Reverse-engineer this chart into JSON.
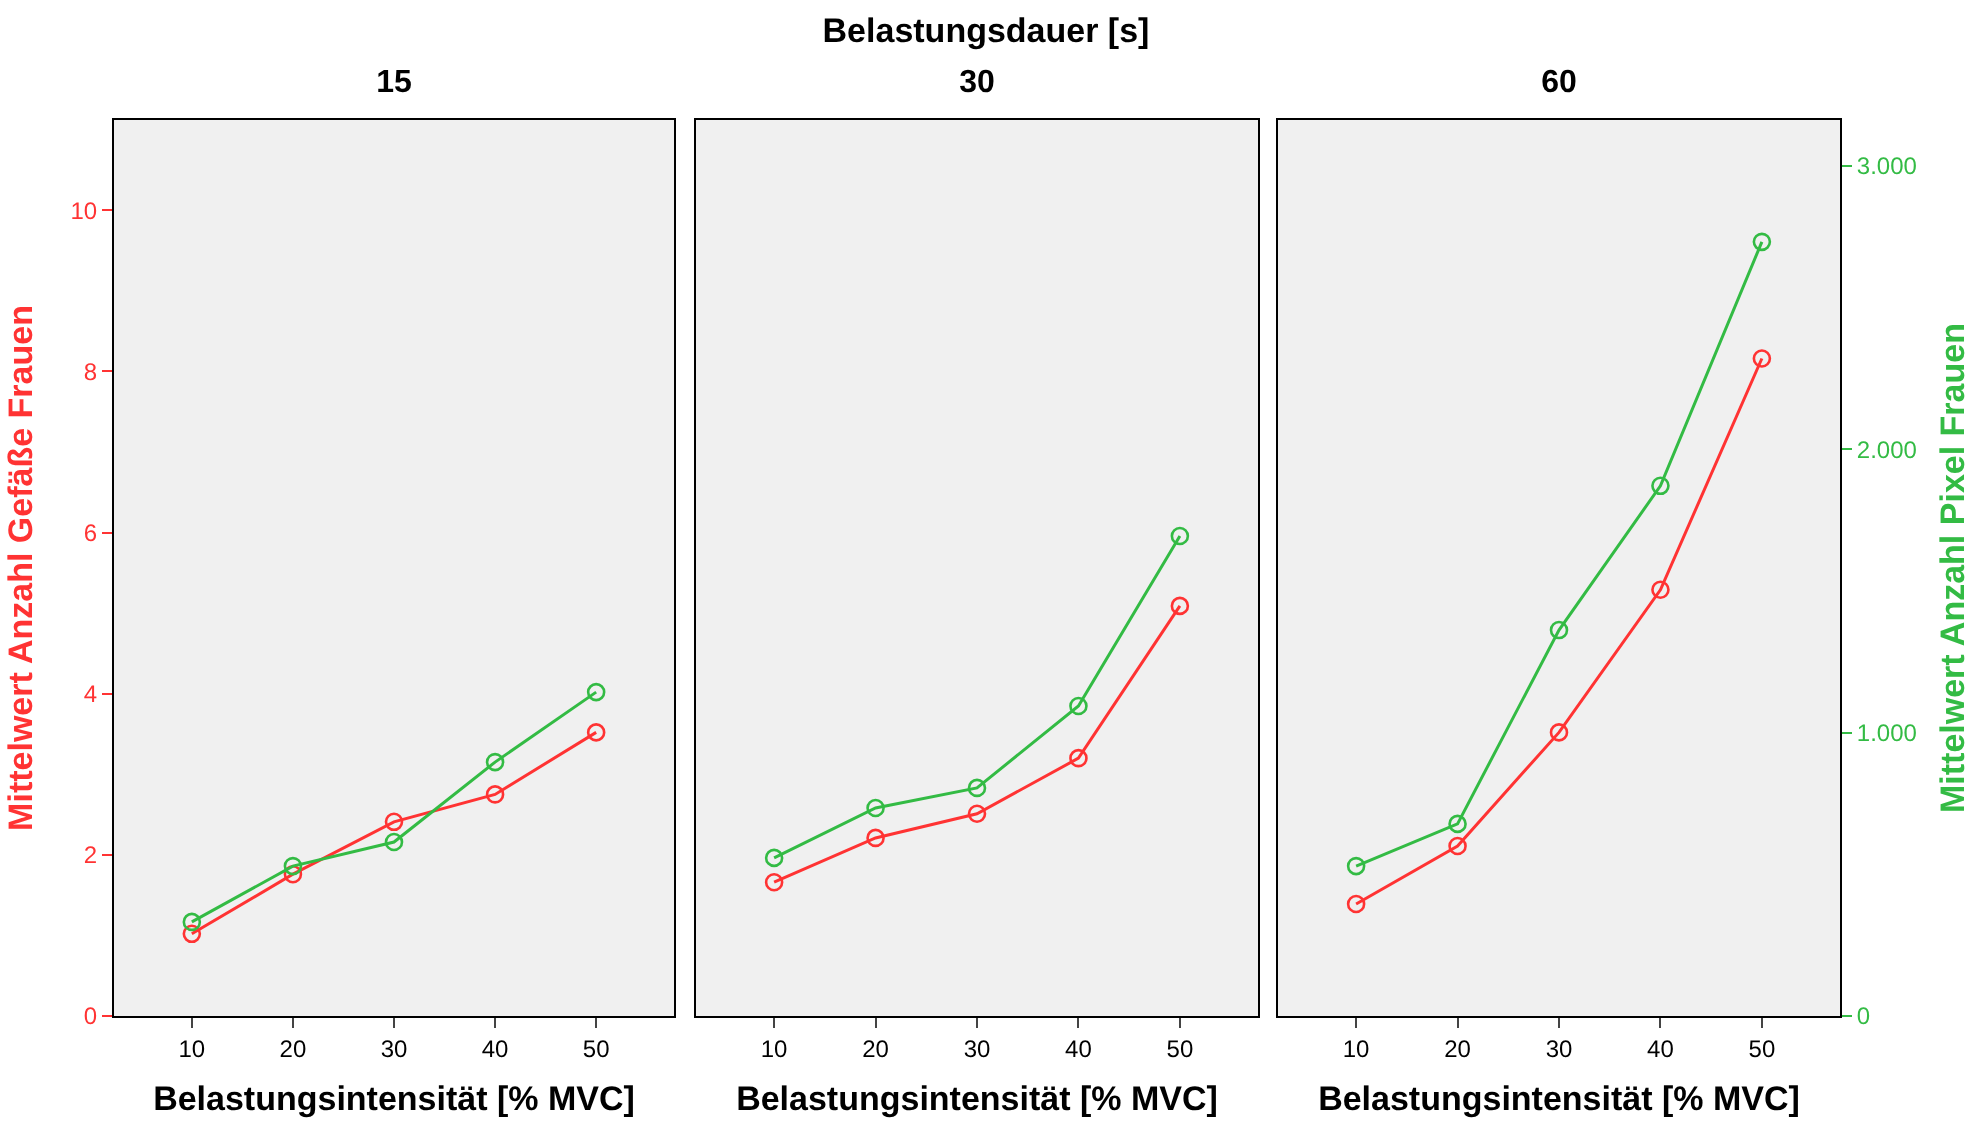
{
  "chart_data": [
    {
      "type": "line",
      "title": "15",
      "annotations": [
        "Belastungsdauer [s]"
      ],
      "xlabel": "Belastungsintensität [% MVC]",
      "ylabel": "Mittelwert Anzahl Gefäße Frauen",
      "x": [
        10,
        20,
        30,
        40,
        50
      ],
      "series": [
        {
          "color": "#ff3333",
          "values": [
            1.02,
            1.76,
            2.41,
            2.75,
            3.52
          ]
        },
        {
          "color": "#33bb44",
          "axis": "y2",
          "values": [
            332,
            529,
            614,
            896,
            1143
          ]
        }
      ],
      "xlim": [
        2.3,
        57.7
      ],
      "xticks": [
        10,
        20,
        30,
        40,
        50
      ],
      "ylim": [
        0,
        11.12
      ],
      "yticks": [
        0,
        2,
        4,
        6,
        8,
        10
      ],
      "y2lim": [
        0,
        3162
      ],
      "marker": "circle",
      "grid": false
    },
    {
      "type": "line",
      "title": "30",
      "xlabel": "Belastungsintensität [% MVC]",
      "x": [
        10,
        20,
        30,
        40,
        50
      ],
      "series": [
        {
          "color": "#ff3333",
          "values": [
            1.66,
            2.21,
            2.51,
            3.2,
            5.09
          ]
        },
        {
          "color": "#33bb44",
          "axis": "y2",
          "values": [
            558,
            734,
            805,
            1094,
            1694
          ]
        }
      ],
      "xlim": [
        2.3,
        57.7
      ],
      "xticks": [
        10,
        20,
        30,
        40,
        50
      ],
      "ylim": [
        0,
        11.12
      ],
      "y2lim": [
        0,
        3162
      ],
      "tick_labels": "x",
      "marker": "circle",
      "grid": false
    },
    {
      "type": "line",
      "title": "60",
      "xlabel": "Belastungsintensität [% MVC]",
      "y2label": "Mittelwert Anzahl Pixel Frauen",
      "x": [
        10,
        20,
        30,
        40,
        50
      ],
      "series": [
        {
          "color": "#ff3333",
          "values": [
            1.39,
            2.11,
            3.52,
            5.29,
            8.16
          ]
        },
        {
          "color": "#33bb44",
          "axis": "y2",
          "values": [
            529,
            678,
            1362,
            1871,
            2732
          ]
        }
      ],
      "xlim": [
        2.3,
        57.7
      ],
      "xticks": [
        10,
        20,
        30,
        40,
        50
      ],
      "ylim": [
        0,
        11.12
      ],
      "y2lim": [
        0,
        3162
      ],
      "y2ticks": [
        0,
        {
          "value": 1000,
          "label": "1.000"
        },
        {
          "value": 2000,
          "label": "2.000"
        },
        {
          "value": 3000,
          "label": "3.000"
        }
      ],
      "marker": "circle",
      "grid": false
    }
  ]
}
